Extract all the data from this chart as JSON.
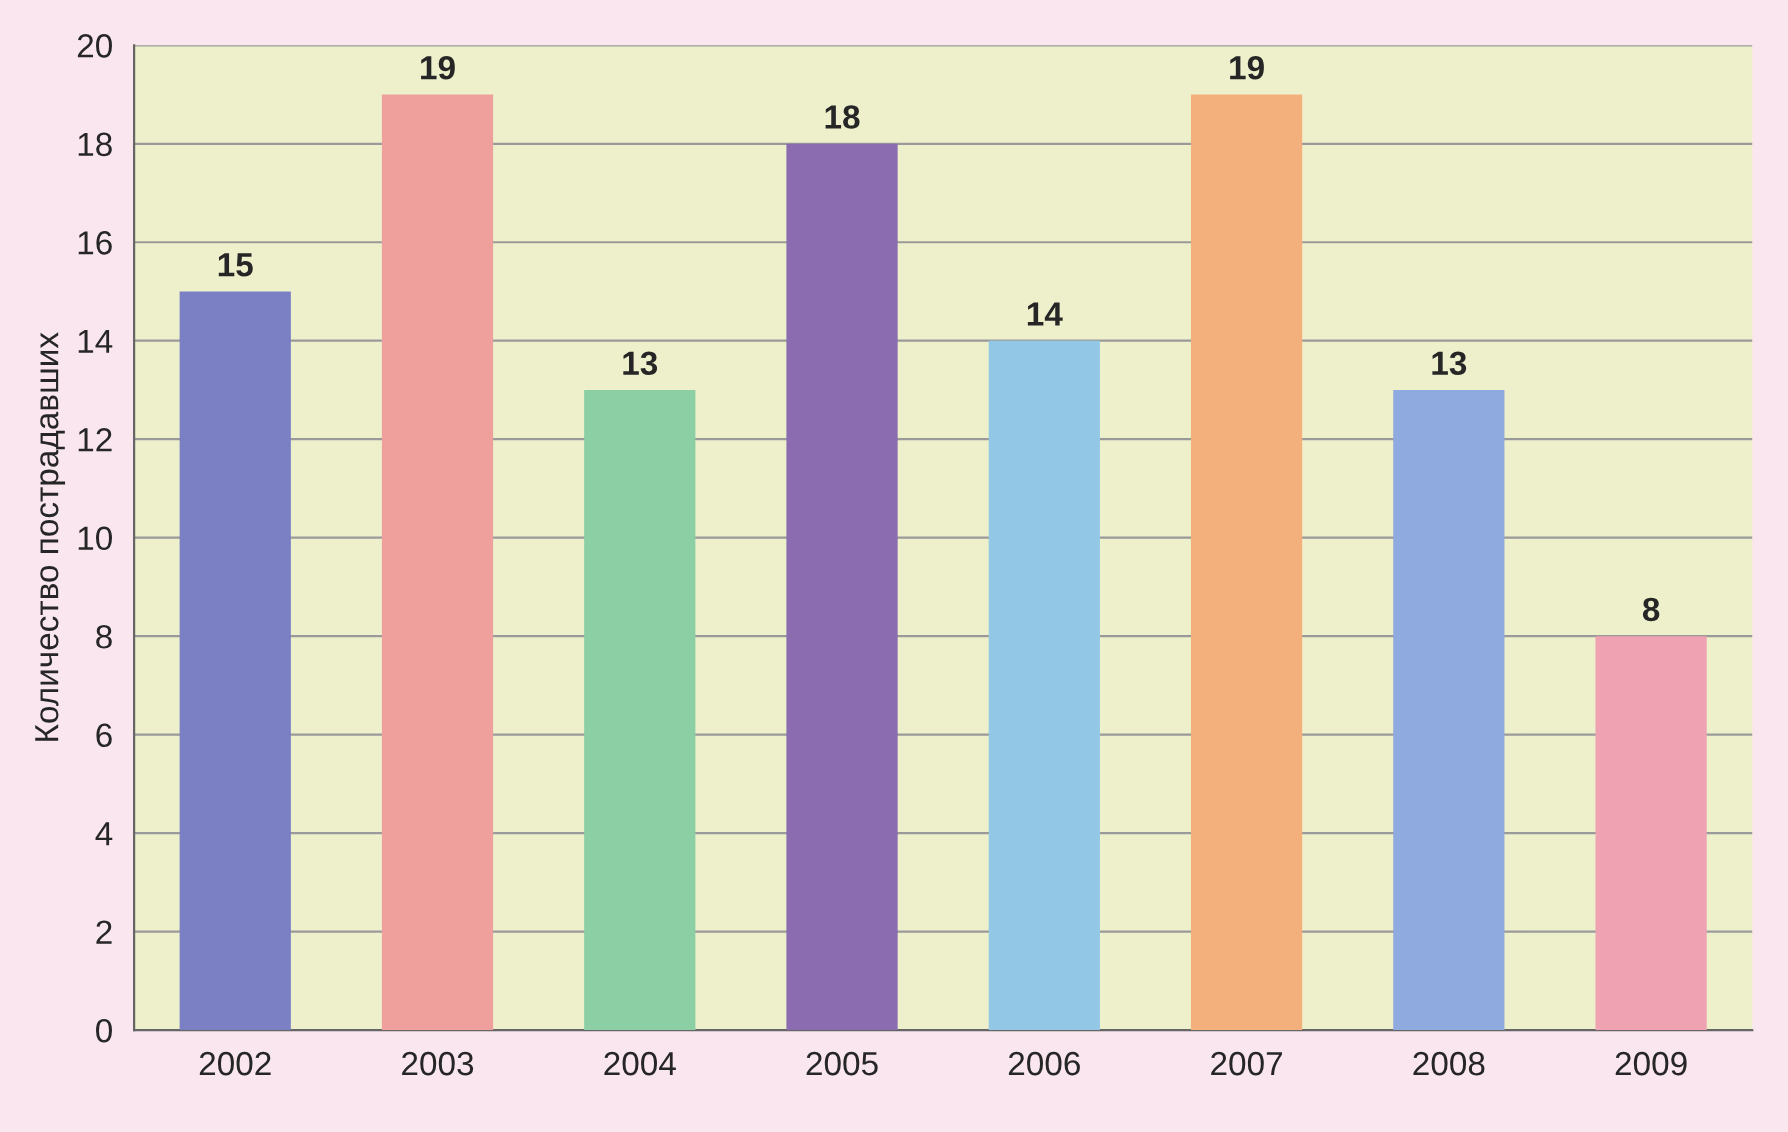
{
  "chart_data": {
    "type": "bar",
    "ylabel": "Количество пострадавших",
    "categories": [
      "2002",
      "2003",
      "2004",
      "2005",
      "2006",
      "2007",
      "2008",
      "2009"
    ],
    "values": [
      15,
      19,
      13,
      18,
      14,
      19,
      13,
      8
    ],
    "colors": [
      "#7b80c4",
      "#f0a09c",
      "#8ccfa4",
      "#8c6cb0",
      "#92c8e6",
      "#f4b07c",
      "#8eaade",
      "#eea2b2"
    ],
    "ylim": [
      0,
      20
    ],
    "yticks": [
      0,
      2,
      4,
      6,
      8,
      10,
      12,
      14,
      16,
      18,
      20
    ],
    "grid": "y",
    "data_labels": true
  }
}
